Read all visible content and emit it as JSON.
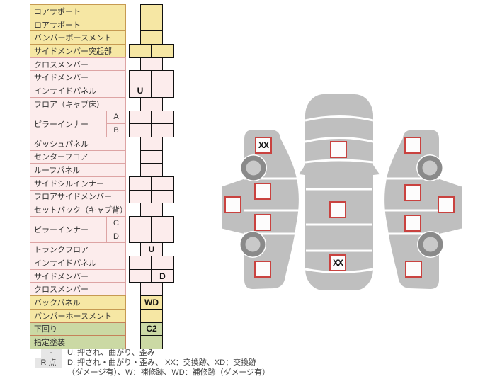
{
  "colors": {
    "yellow": "#f6e7a4",
    "yellow_border": "#c69a52",
    "pink": "#fcecec",
    "pink_border": "#dda4a4",
    "green": "#cbd9a4",
    "green_border": "#c5815a",
    "car_gray": "#bfbfbf",
    "wheel_dark": "#8a8a8a",
    "wheel_hub": "#c9c9c9",
    "square_border": "#c9423f",
    "legend_swatch": "#e6e6e6",
    "text": "#333333"
  },
  "parts_table": {
    "blocks": [
      {
        "label": "コアサポート",
        "color": "yellow",
        "cell": "narrow",
        "code": ""
      },
      {
        "label": "ロアサポート",
        "color": "yellow",
        "cell": "narrow",
        "code": ""
      },
      {
        "label": "バンパーボースメント",
        "color": "yellow",
        "cell": "narrow",
        "code": ""
      },
      {
        "label": "サイドメンバー突起部",
        "color": "yellow",
        "cell": "wide",
        "codes": [
          "",
          ""
        ]
      },
      {
        "label": "クロスメンバー",
        "color": "pink",
        "cell": "narrow",
        "code": ""
      },
      {
        "label": "サイドメンバー",
        "color": "pink",
        "cell": "wide",
        "codes": [
          "",
          ""
        ]
      },
      {
        "label": "インサイドパネル",
        "color": "pink",
        "cell": "wide",
        "codes": [
          "U",
          ""
        ]
      },
      {
        "label": "フロア（キャブ床）",
        "color": "pink",
        "cell": "narrow",
        "code": ""
      },
      {
        "label": "ピラーインナー",
        "color": "pink",
        "subs": [
          "A",
          "B"
        ],
        "cell": "wide2",
        "codes": [
          [
            "",
            ""
          ],
          [
            "",
            ""
          ]
        ]
      },
      {
        "label": "ダッシュパネル",
        "color": "pink",
        "cell": "narrow",
        "code": ""
      },
      {
        "label": "センターフロア",
        "color": "pink",
        "cell": "narrow",
        "code": ""
      },
      {
        "label": "ルーフパネル",
        "color": "pink",
        "cell": "narrow",
        "code": ""
      },
      {
        "label": "サイドシルインナー",
        "color": "pink",
        "cell": "wide",
        "codes": [
          "",
          ""
        ]
      },
      {
        "label": "フロアサイドメンバー",
        "color": "pink",
        "cell": "wide",
        "codes": [
          "",
          ""
        ]
      },
      {
        "label": "セットバック（キャブ背）",
        "color": "pink",
        "cell": "narrow",
        "code": ""
      },
      {
        "label": "ピラーインナー",
        "color": "pink",
        "subs": [
          "C",
          "D"
        ],
        "cell": "wide2",
        "codes": [
          [
            "",
            ""
          ],
          [
            "",
            ""
          ]
        ]
      },
      {
        "label": "トランクフロア",
        "color": "pink",
        "cell": "narrow",
        "code": "U"
      },
      {
        "label": "インサイドパネル",
        "color": "pink",
        "cell": "wide",
        "codes": [
          "",
          ""
        ]
      },
      {
        "label": "サイドメンバー",
        "color": "pink",
        "cell": "wide",
        "codes": [
          "",
          "D"
        ]
      },
      {
        "label": "クロスメンバー",
        "color": "pink",
        "cell": "narrow",
        "code": ""
      },
      {
        "label": "バックパネル",
        "color": "yellow",
        "cell": "narrow",
        "code": "WD"
      },
      {
        "label": "バンパーホースメント",
        "color": "yellow",
        "cell": "narrow",
        "code": ""
      },
      {
        "label": "下回り",
        "color": "green",
        "cell": "narrow",
        "code": "C2"
      },
      {
        "label": "指定塗装",
        "color": "green",
        "cell": "narrow",
        "code": ""
      }
    ]
  },
  "diagram": {
    "squares": {
      "left_front_fender": "XX",
      "left_front_door": "",
      "left_roof": "",
      "left_rear_door": "",
      "left_rear_fender": "",
      "top_hood": "",
      "top_roof": "",
      "top_trunk": "XX",
      "right_front_fender": "",
      "right_front_door": "",
      "right_roof": "",
      "right_rear_door": "",
      "right_rear_fender": ""
    }
  },
  "legend": {
    "row1": {
      "swatch": "-",
      "text": "U: 押され、曲がり、歪み"
    },
    "row2": {
      "swatch": "R 点",
      "text": "D: 押され・曲がり・歪み、 XX：交換跡、XD：交換跡"
    },
    "row3": {
      "text": "（ダメージ有）、W：補修跡、WD：補修跡（ダメージ有）"
    }
  }
}
